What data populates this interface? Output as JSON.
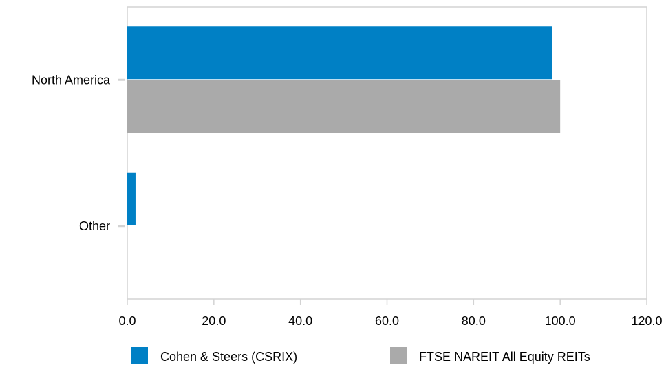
{
  "chart_data": {
    "type": "bar",
    "orientation": "horizontal",
    "categories": [
      "North America",
      "Other"
    ],
    "series": [
      {
        "name": "Cohen & Steers (CSRIX)",
        "color": "#0080C5",
        "values": [
          98.1,
          1.9
        ]
      },
      {
        "name": "FTSE NAREIT All Equity REITs",
        "color": "#AAAAAA",
        "values": [
          100.0,
          0.0
        ]
      }
    ],
    "xlim": [
      0,
      120
    ],
    "x_ticks": [
      "0.0",
      "20.0",
      "40.0",
      "60.0",
      "80.0",
      "100.0",
      "120.0"
    ],
    "grid": false,
    "legend_position": "bottom",
    "colors": {
      "axis_line": "#D3D3D3",
      "frame": "#D3D3D3"
    }
  }
}
